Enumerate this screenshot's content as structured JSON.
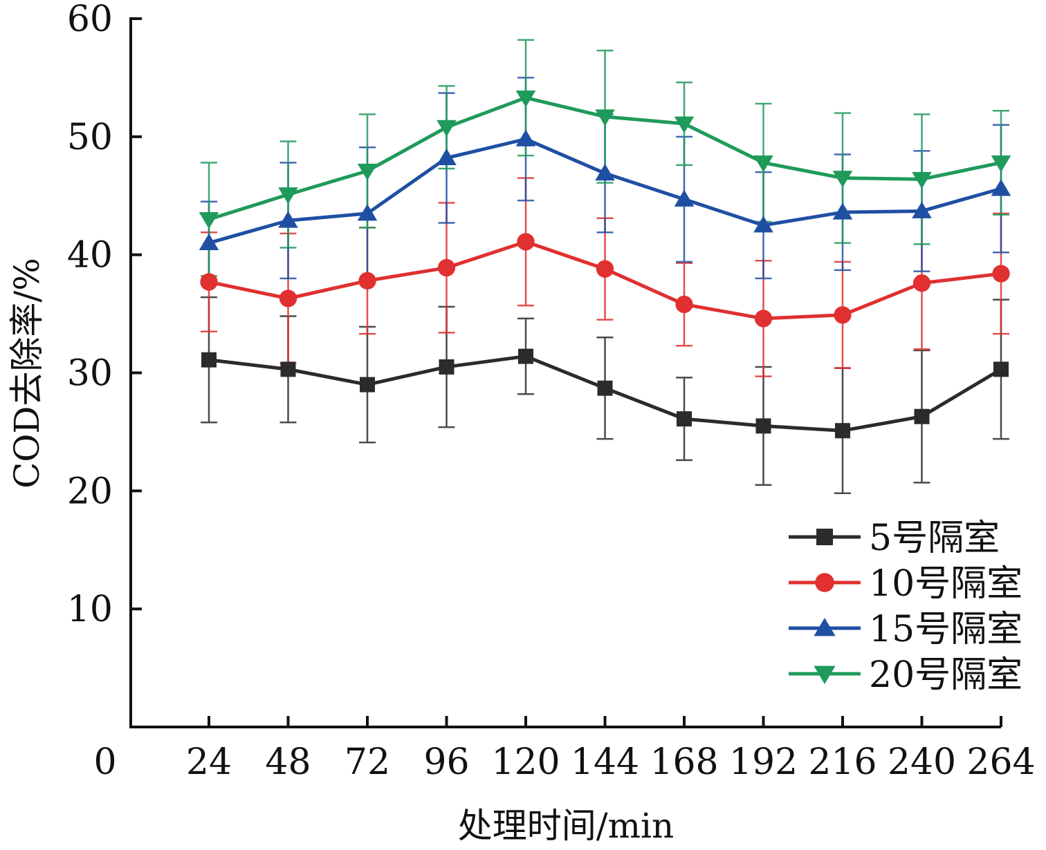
{
  "chart_data": {
    "type": "line",
    "title": "",
    "xlabel": "处理时间/min",
    "ylabel": "COD去除率/%",
    "x": [
      24,
      48,
      72,
      96,
      120,
      144,
      168,
      192,
      216,
      240,
      264
    ],
    "x_tick_labels": [
      "24",
      "48",
      "72",
      "96",
      "120",
      "144",
      "168",
      "192",
      "216",
      "240",
      "264"
    ],
    "origin_label": "0",
    "xlim": [
      0,
      264
    ],
    "ylim": [
      0,
      60
    ],
    "y_ticks": [
      10,
      20,
      30,
      40,
      50,
      60
    ],
    "y_tick_labels": [
      "10",
      "20",
      "30",
      "40",
      "50",
      "60"
    ],
    "grid": false,
    "legend_position": "bottom-right",
    "error_bars": true,
    "series": [
      {
        "name": "5号隔室",
        "color": "#2b2b2b",
        "marker": "square",
        "values": [
          31.1,
          30.3,
          29.0,
          30.5,
          31.4,
          28.7,
          26.1,
          25.5,
          25.1,
          26.3,
          30.3
        ],
        "errors": [
          5.3,
          4.5,
          4.9,
          5.1,
          3.2,
          4.3,
          3.5,
          5.0,
          5.3,
          5.6,
          5.9
        ]
      },
      {
        "name": "10号隔室",
        "color": "#e03030",
        "marker": "circle",
        "values": [
          37.7,
          36.3,
          37.8,
          38.9,
          41.1,
          38.8,
          35.8,
          34.6,
          34.9,
          37.6,
          38.4
        ],
        "errors": [
          4.2,
          5.5,
          4.5,
          5.5,
          5.4,
          4.3,
          3.5,
          4.9,
          4.5,
          5.6,
          5.1
        ]
      },
      {
        "name": "15号隔室",
        "color": "#1f4fa3",
        "marker": "triangle-up",
        "values": [
          41.0,
          42.9,
          43.5,
          48.2,
          49.8,
          46.9,
          44.7,
          42.5,
          43.6,
          43.7,
          45.6
        ],
        "errors": [
          3.5,
          4.9,
          5.6,
          5.5,
          5.2,
          5.0,
          5.3,
          4.5,
          4.9,
          5.1,
          5.4
        ]
      },
      {
        "name": "20号隔室",
        "color": "#1f9a5a",
        "marker": "triangle-down",
        "values": [
          43.0,
          45.1,
          47.1,
          50.8,
          53.3,
          51.7,
          51.1,
          47.8,
          46.5,
          46.4,
          47.8
        ],
        "errors": [
          4.8,
          4.5,
          4.8,
          3.5,
          4.9,
          5.6,
          3.5,
          5.0,
          5.5,
          5.5,
          4.4
        ]
      }
    ]
  }
}
